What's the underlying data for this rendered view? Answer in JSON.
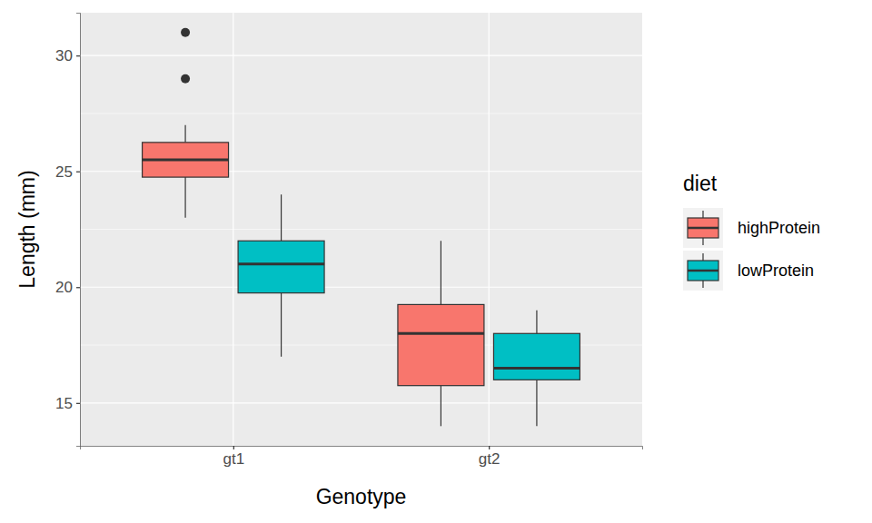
{
  "chart_data": {
    "type": "box",
    "x_label": "Genotype",
    "y_label": "Length (mm)",
    "legend_title": "diet",
    "categories": [
      "gt1",
      "gt2"
    ],
    "series": [
      {
        "name": "highProtein",
        "color": "#F8766D",
        "values": [
          {
            "whisker_low": 23,
            "q1": 24.75,
            "median": 25.5,
            "q3": 26.25,
            "whisker_high": 27,
            "outliers": [
              29,
              31
            ]
          },
          {
            "whisker_low": 14,
            "q1": 15.75,
            "median": 18,
            "q3": 19.25,
            "whisker_high": 22,
            "outliers": []
          }
        ]
      },
      {
        "name": "lowProtein",
        "color": "#00BFC4",
        "values": [
          {
            "whisker_low": 17,
            "q1": 19.75,
            "median": 21,
            "q3": 22,
            "whisker_high": 24,
            "outliers": []
          },
          {
            "whisker_low": 14,
            "q1": 16,
            "median": 16.5,
            "q3": 18,
            "whisker_high": 19,
            "outliers": []
          }
        ]
      }
    ],
    "ylim": [
      13.15,
      31.85
    ],
    "yticks": [
      15,
      20,
      25,
      30
    ],
    "minor_yticks": [
      17.5,
      22.5,
      27.5
    ],
    "grid": true,
    "legend": "right"
  }
}
